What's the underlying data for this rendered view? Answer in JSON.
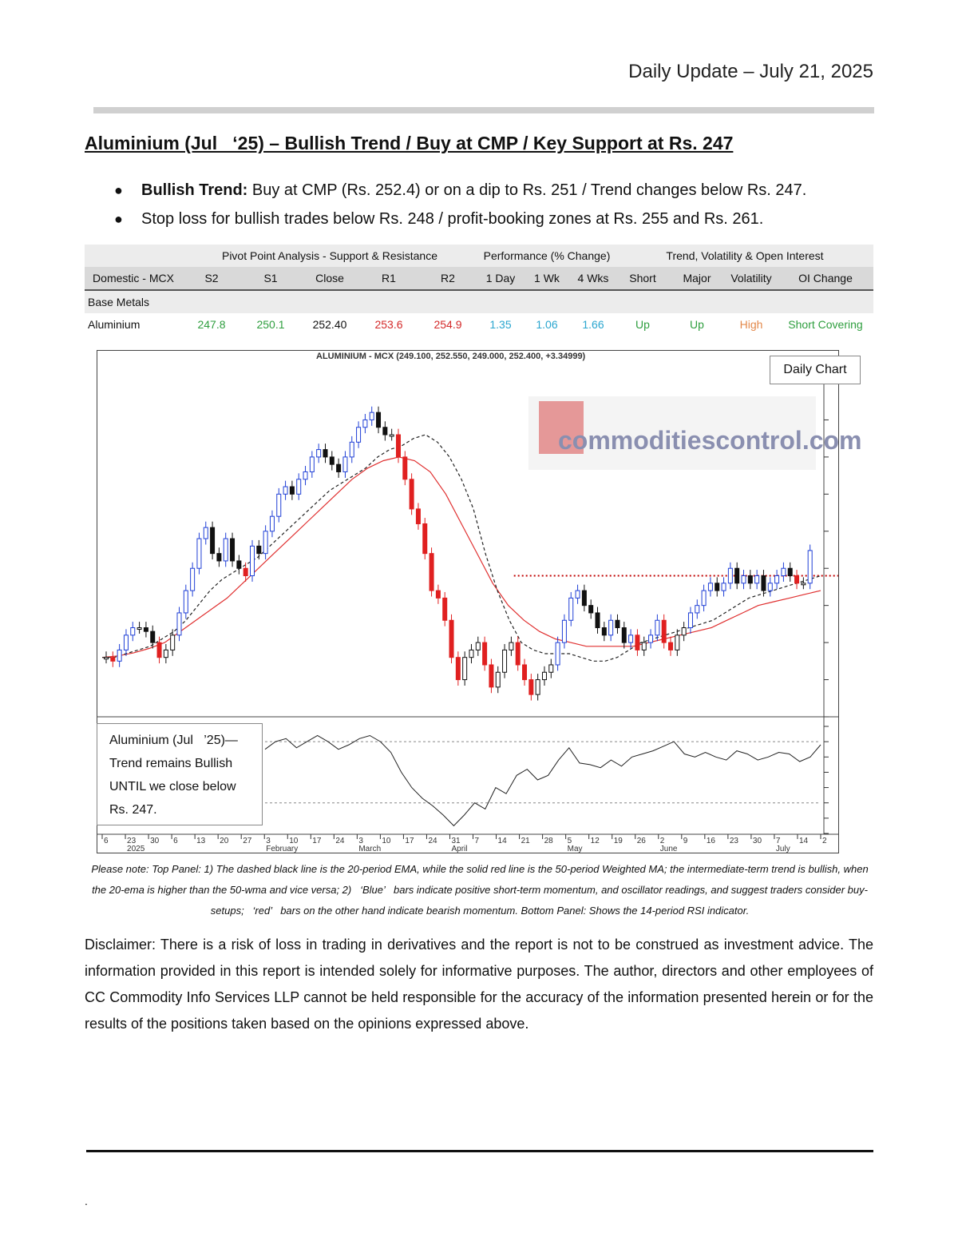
{
  "header": {
    "date": "Daily Update – July 21, 2025"
  },
  "title": "Aluminium (Jul   ‘25) – Bullish Trend / Buy at CMP / Key Support at Rs. 247",
  "bullets": [
    {
      "lead": "Bullish Trend:",
      "text": " Buy at CMP (Rs. 252.4) or on a dip to Rs. 251 / Trend changes below Rs. 247."
    },
    {
      "lead": "",
      "text": "Stop loss for bullish trades below Rs. 248 / profit-booking zones at Rs. 255 and Rs. 261."
    }
  ],
  "table": {
    "groups": [
      "Pivot Point Analysis - Support & Resistance",
      "Performance (% Change)",
      "Trend, Volatility & Open Interest"
    ],
    "headers": [
      "Domestic - MCX",
      "S2",
      "S1",
      "Close",
      "R1",
      "R2",
      "1 Day",
      "1 Wk",
      "4 Wks",
      "Short",
      "Major",
      "Volatility",
      "OI Change"
    ],
    "category": "Base Metals",
    "row": [
      "Aluminium",
      "247.8",
      "250.1",
      "252.40",
      "253.6",
      "254.9",
      "1.35",
      "1.06",
      "1.66",
      "Up",
      "Up",
      "High",
      "Short Covering"
    ]
  },
  "chart": {
    "title": "ALUMINIUM - MCX (249.100, 252.550, 249.000, 252.400, +3.34999)",
    "badge": "Daily Chart",
    "logo_text": "commoditiescontrol.com",
    "rsi_note": [
      "Aluminium (Jul   ’25)—",
      "Trend remains Bullish",
      "UNTIL we close below",
      "Rs. 247."
    ]
  },
  "chart_data": {
    "type": "candlestick",
    "title": "ALUMINIUM - MCX (249.100, 252.550, 249.000, 252.400, +3.34999)",
    "ylim": [
      230,
      275
    ],
    "y_ticks": [
      230,
      235,
      240,
      245,
      250,
      255,
      260,
      265,
      270
    ],
    "rsi_ylim": [
      10,
      80
    ],
    "rsi_ticks": [
      10,
      20,
      30,
      40,
      50,
      60,
      70,
      80
    ],
    "rsi_levels": [
      30,
      70
    ],
    "resistance_level": 249,
    "x_tick_labels": [
      "6",
      "23",
      "30",
      "6",
      "13",
      "20",
      "27",
      "3",
      "10",
      "17",
      "24",
      "3",
      "10",
      "17",
      "24",
      "31",
      "7",
      "14",
      "21",
      "28",
      "5",
      "12",
      "19",
      "26",
      "2",
      "9",
      "16",
      "23",
      "30",
      "7",
      "14",
      "2"
    ],
    "month_labels": [
      "2025",
      "February",
      "March",
      "April",
      "May",
      "June",
      "July"
    ],
    "close_path": [
      238,
      237.5,
      239,
      241,
      242,
      242,
      241.5,
      240,
      238,
      239,
      241,
      244,
      247,
      250,
      254,
      255.5,
      252,
      251,
      254,
      251,
      250,
      249,
      253,
      252,
      255,
      257,
      260,
      261,
      260,
      262,
      263,
      265,
      266,
      265,
      264,
      263,
      265,
      267,
      269,
      270,
      271,
      269,
      268,
      268,
      265,
      262,
      258,
      256,
      252,
      247,
      246,
      243,
      238,
      235,
      238,
      239,
      240,
      237,
      234,
      236,
      239,
      240,
      237,
      235,
      233,
      235,
      236,
      237,
      240,
      243,
      246,
      247,
      245,
      244,
      242,
      241,
      243,
      242,
      240,
      241,
      239,
      240,
      241,
      243,
      240,
      239,
      241,
      242,
      244,
      245,
      247,
      248,
      247,
      248,
      250,
      248,
      249,
      248,
      249,
      247,
      248,
      249,
      250,
      249,
      248,
      248,
      252.4
    ],
    "ema20_path": [
      238,
      238,
      238.5,
      239,
      239.5,
      240.5,
      241.5,
      243,
      245,
      247,
      248.5,
      249.5,
      250.5,
      251.5,
      253,
      254.5,
      256,
      257.5,
      259,
      260.5,
      261.5,
      262.5,
      263.5,
      265,
      266,
      266.5,
      267.5,
      268,
      267,
      265,
      262,
      258,
      252,
      247,
      243,
      240,
      239,
      238.5,
      238.5,
      238.5,
      238,
      237.5,
      237.5,
      238,
      239,
      240,
      240.5,
      241,
      241.5,
      242,
      242.5,
      243,
      244,
      245,
      246,
      246.5,
      247,
      247.5,
      248,
      248.5,
      249
    ],
    "wma50_path": [
      238,
      238.2,
      238.6,
      239.2,
      240,
      241.5,
      243,
      244.5,
      246,
      248,
      250,
      252,
      254,
      256,
      258,
      260,
      262,
      263.5,
      264.5,
      265,
      264.5,
      263,
      260,
      256,
      252,
      248,
      245,
      243,
      241.5,
      240.5,
      240,
      239.5,
      239.5,
      239.5,
      239.5,
      240,
      240.5,
      241,
      241.5,
      242,
      243,
      244,
      245,
      245.5,
      246,
      246.5,
      247
    ],
    "rsi_path": [
      65,
      70,
      72,
      66,
      70,
      74,
      70,
      65,
      68,
      72,
      74,
      70,
      63,
      50,
      40,
      33,
      28,
      22,
      15,
      22,
      30,
      26,
      40,
      36,
      48,
      52,
      45,
      48,
      58,
      66,
      56,
      55,
      53,
      58,
      54,
      60,
      62,
      64,
      67,
      70,
      62,
      60,
      63,
      60,
      58,
      64,
      62,
      58,
      60,
      63,
      62,
      57,
      60,
      68
    ]
  },
  "note": "Please note: Top Panel: 1) The dashed black line is the 20-period EMA, while the solid red line is the 50-period Weighted MA; the intermediate-term trend is bullish, when the 20-ema is higher than the 50-wma and vice versa; 2)   ‘Blue’   bars indicate positive short-term momentum, and oscillator readings, and suggest traders consider buy-setups;   ‘red’   bars on the other hand indicate bearish momentum. Bottom Panel: Shows the 14-period RSI indicator.",
  "disclaimer": "Disclaimer: There is a risk of loss in trading in derivatives and the report is not to be construed as investment advice. The information provided in this report is intended solely for informative purposes. The author, directors and other employees of CC Commodity Info Services LLP cannot be held responsible for the accuracy of the information presented herein or for the results of the positions taken based on the opinions expressed above.",
  "footer": {
    "dot": "."
  },
  "colors": {
    "bull": "#1f3fd6",
    "bear": "#e02020",
    "neutral": "#111111",
    "wma": "#e03030",
    "resistance": "#c00000"
  }
}
